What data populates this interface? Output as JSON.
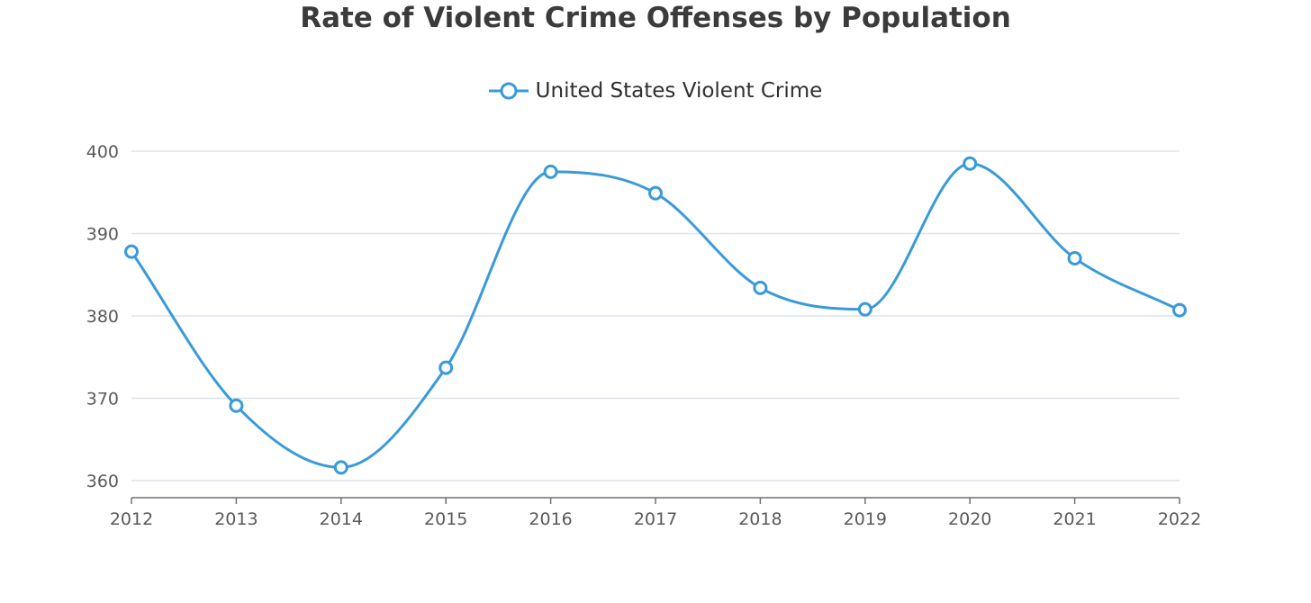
{
  "chart_data": {
    "type": "line",
    "title": "Rate of Violent Crime Offenses by Population",
    "xlabel": "",
    "ylabel": "",
    "categories": [
      "2012",
      "2013",
      "2014",
      "2015",
      "2016",
      "2017",
      "2018",
      "2019",
      "2020",
      "2021",
      "2022"
    ],
    "series": [
      {
        "name": "United States Violent Crime",
        "values": [
          387.8,
          369.1,
          361.6,
          373.7,
          397.5,
          394.9,
          383.4,
          380.8,
          398.5,
          387.0,
          380.7
        ]
      }
    ],
    "ylim": [
      360,
      400
    ],
    "yticks": [
      "360",
      "370",
      "380",
      "390",
      "400"
    ],
    "grid": true,
    "legend_position": "top-center",
    "smooth": true,
    "colors": {
      "series": "#3a9ad9",
      "grid": "#dde3ea",
      "axis": "#6e7079",
      "text": "#5a5a5a"
    }
  }
}
